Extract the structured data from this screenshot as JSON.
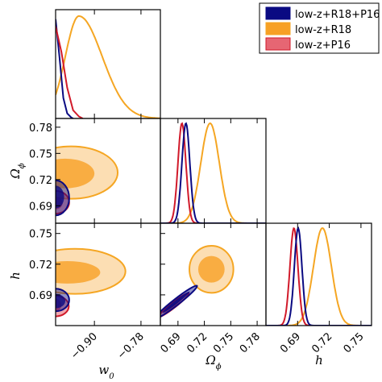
{
  "chart_data": {
    "type": "triangle-corner",
    "parameters": [
      "w_0",
      "Omega_phi",
      "h"
    ],
    "axis_labels": {
      "w0": "w",
      "w0_sub": "0",
      "omega": "Ω",
      "omega_sub": "ϕ",
      "h": "h"
    },
    "ranges": {
      "w0": [
        -1.0,
        -0.73
      ],
      "omega": [
        0.67,
        0.79
      ],
      "h": [
        0.66,
        0.76
      ]
    },
    "ticks": {
      "w0": [
        -0.9,
        -0.78
      ],
      "omega": [
        0.69,
        0.72,
        0.75,
        0.78
      ],
      "h": [
        0.69,
        0.72,
        0.75
      ]
    },
    "tick_labels": {
      "w0": [
        "−0.90",
        "−0.78"
      ],
      "omega": [
        "0.69",
        "0.72",
        "0.75",
        "0.78"
      ],
      "h": [
        "0.69",
        "0.72",
        "0.75"
      ]
    },
    "series": [
      {
        "name": "low-z+R18+P16",
        "color": "#0a0a82",
        "fill": "#0a0a82",
        "w0_1d": {
          "x": [
            -1.0,
            -0.99,
            -0.98,
            -0.97,
            -0.96,
            -0.955
          ],
          "y": [
            0.97,
            0.6,
            0.2,
            0.05,
            0.01,
            0.0
          ]
        },
        "omega_1d": {
          "mean": 0.699,
          "sigma": 0.0045
        },
        "h_1d": {
          "mean": 0.6905,
          "sigma": 0.0036
        },
        "w0_omega": {
          "inner": {
            "cx": -1.0,
            "cy": 0.7,
            "rx": 0.022,
            "ry": 0.013
          },
          "outer": {
            "cx": -1.0,
            "cy": 0.699,
            "rx": 0.035,
            "ry": 0.02
          }
        },
        "w0_h": {
          "inner": {
            "cx": -1.0,
            "cy": 0.684,
            "rx": 0.025,
            "ry": 0.007
          },
          "outer": {
            "cx": -1.0,
            "cy": 0.685,
            "rx": 0.035,
            "ry": 0.011
          }
        },
        "omega_h": {
          "cx": 0.688,
          "cy": 0.683,
          "len": 0.03,
          "wid": 0.003
        }
      },
      {
        "name": "low-z+R18",
        "color": "#f5a623",
        "fill": "#f7a025",
        "w0_1d": {
          "mean": -0.94,
          "sigma_left": 0.035,
          "sigma_right": 0.06
        },
        "omega_1d": {
          "mean": 0.7265,
          "sigma": 0.0105
        },
        "h_1d": {
          "mean": 0.7135,
          "sigma": 0.0085
        },
        "w0_omega": {
          "inner": {
            "cx": -0.975,
            "cy": 0.727,
            "rx": 0.075,
            "ry": 0.017
          },
          "outer": {
            "cx": -0.96,
            "cy": 0.728,
            "rx": 0.12,
            "ry": 0.03
          }
        },
        "w0_h": {
          "inner": {
            "cx": -0.97,
            "cy": 0.712,
            "rx": 0.085,
            "ry": 0.011
          },
          "outer": {
            "cx": -0.95,
            "cy": 0.713,
            "rx": 0.13,
            "ry": 0.022
          }
        },
        "omega_h": {
          "inner": {
            "cx": 0.728,
            "cy": 0.715,
            "rx": 0.015,
            "ry": 0.013
          },
          "outer": {
            "cx": 0.728,
            "cy": 0.715,
            "rx": 0.025,
            "ry": 0.023
          }
        }
      },
      {
        "name": "low-z+P16",
        "color": "#d11a2a",
        "fill": "#e04050",
        "w0_1d": {
          "x": [
            -1.0,
            -0.985,
            -0.97,
            -0.955,
            -0.94,
            -0.93
          ],
          "y": [
            0.9,
            0.65,
            0.3,
            0.08,
            0.02,
            0.0
          ]
        },
        "omega_1d": {
          "mean": 0.6945,
          "sigma": 0.0045
        },
        "h_1d": {
          "mean": 0.6865,
          "sigma": 0.0038
        },
        "w0_omega": {
          "inner": {
            "cx": -1.0,
            "cy": 0.693,
            "rx": 0.018,
            "ry": 0.007
          },
          "outer": {
            "cx": -1.0,
            "cy": 0.694,
            "rx": 0.035,
            "ry": 0.013
          }
        },
        "w0_h": {
          "inner": {
            "cx": -1.0,
            "cy": 0.68,
            "rx": 0.015,
            "ry": 0.006
          },
          "outer": {
            "cx": -1.0,
            "cy": 0.679,
            "rx": 0.034,
            "ry": 0.01
          }
        },
        "omega_h": {
          "cx": 0.685,
          "cy": 0.68,
          "len": 0.022,
          "wid": 0.0025
        }
      }
    ],
    "legend": {
      "position": "top-right",
      "entries": [
        "low-z+R18+P16",
        "low-z+R18",
        "low-z+P16"
      ]
    }
  }
}
